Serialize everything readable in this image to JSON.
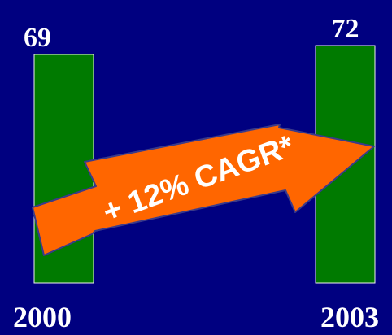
{
  "chart_data": {
    "type": "bar",
    "categories": [
      "2000",
      "2003"
    ],
    "values": [
      69,
      72
    ],
    "data_labels": [
      "69",
      "72"
    ],
    "annotation": "+ 12% CAGR*",
    "colors": {
      "background": "#000080",
      "bar": "#007A00",
      "bar_outline": "#F0F0F0",
      "text": "#FFFFFF",
      "arrow_fill": "#FF6600",
      "arrow_outline": "#3A3A8A"
    }
  }
}
